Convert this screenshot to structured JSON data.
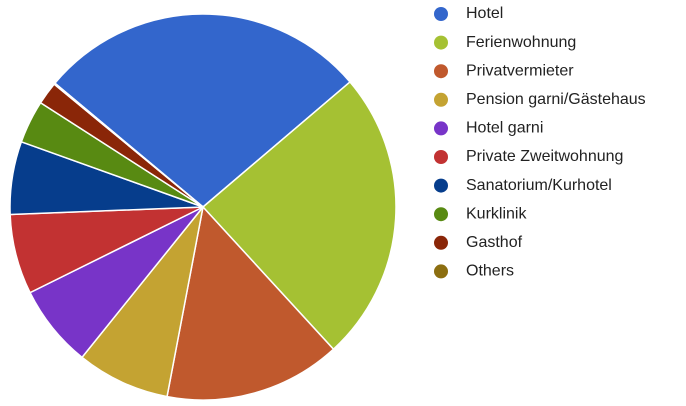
{
  "chart_data": {
    "type": "pie",
    "categories": [
      "Hotel",
      "Ferienwohnung",
      "Privatvermieter",
      "Pension garni/Gästehaus",
      "Hotel garni",
      "Private Zweitwohnung",
      "Sanatorium/Kurhotel",
      "Kurklinik",
      "Gasthof",
      "Others"
    ],
    "values": [
      27.7,
      24.4,
      14.8,
      7.8,
      6.9,
      6.7,
      6.1,
      3.6,
      1.9,
      0.1
    ],
    "colors": [
      "#3366cc",
      "#a5c133",
      "#c0592d",
      "#c4a332",
      "#7834c8",
      "#c23232",
      "#063d8c",
      "#588a12",
      "#8a2608",
      "#8c6e10"
    ],
    "legend": "right"
  }
}
